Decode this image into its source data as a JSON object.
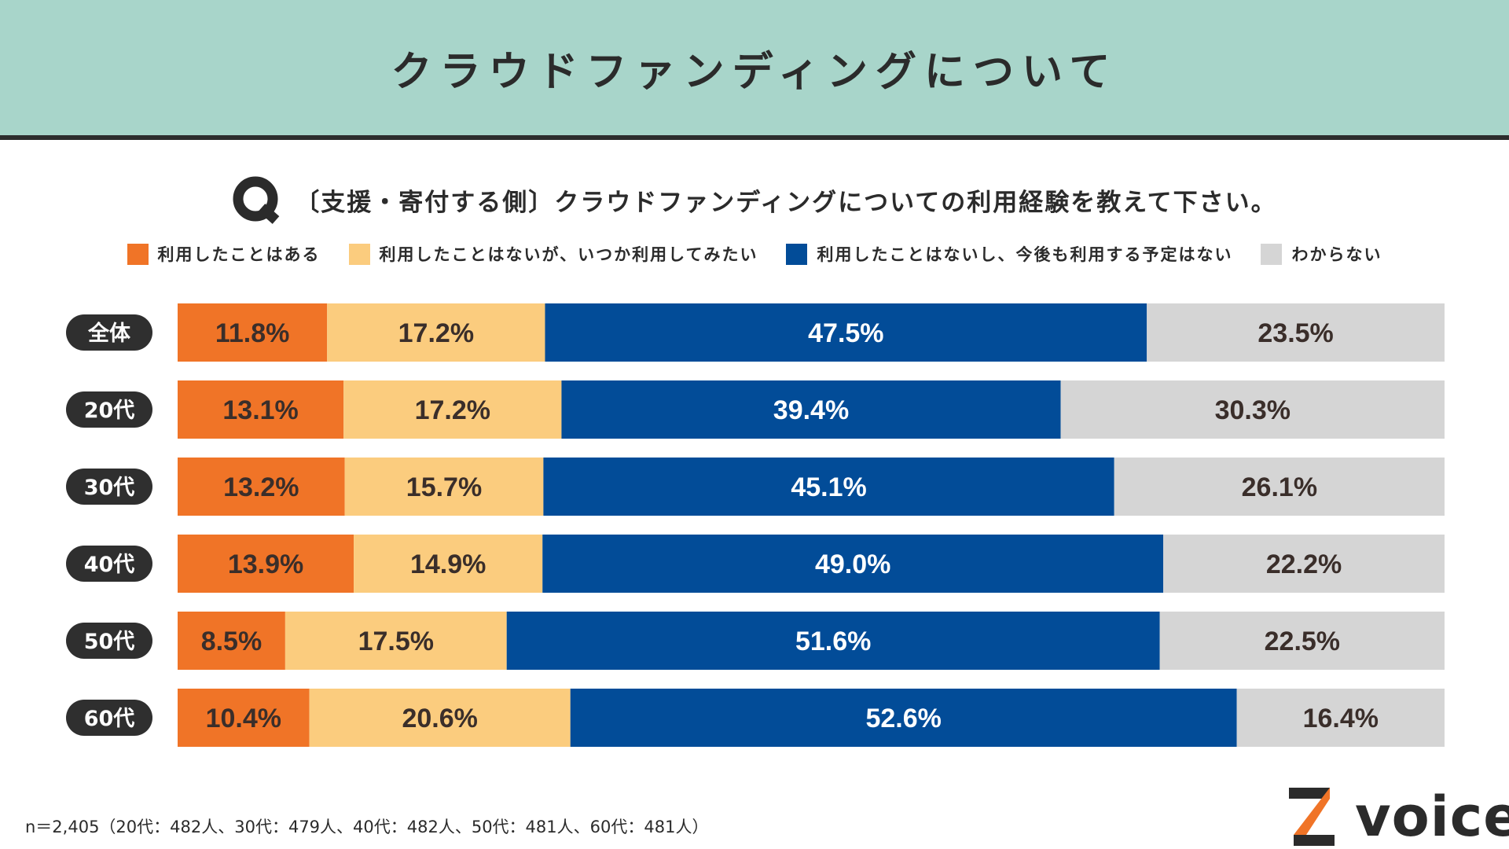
{
  "header": {
    "title": "クラウドファンディングについて"
  },
  "question": {
    "text": "〔支援・寄付する側〕クラウドファンディングについての利用経験を教えて下さい。"
  },
  "legend": [
    {
      "label": "利用したことはある",
      "color": "#f07427"
    },
    {
      "label": "利用したことはないが、いつか利用してみたい",
      "color": "#fbcc7e"
    },
    {
      "label": "利用したことはないし、今後も利用する予定はない",
      "color": "#024c98"
    },
    {
      "label": "わからない",
      "color": "#d5d5d5"
    }
  ],
  "chart_data": {
    "type": "bar",
    "orientation": "horizontal-stacked-100",
    "categories": [
      "全体",
      "20代",
      "30代",
      "40代",
      "50代",
      "60代"
    ],
    "series": [
      {
        "name": "利用したことはある",
        "values": [
          11.8,
          13.1,
          13.2,
          13.9,
          8.5,
          10.4
        ],
        "labels": [
          "11.8%",
          "13.1%",
          "13.2%",
          "13.9%",
          "8.5%",
          "10.4%"
        ],
        "color": "#f07427",
        "label_color": "#3a2e2a"
      },
      {
        "name": "利用したことはないが、いつか利用してみたい",
        "values": [
          17.2,
          17.2,
          15.7,
          14.9,
          17.5,
          20.6
        ],
        "labels": [
          "17.2%",
          "17.2%",
          "15.7%",
          "14.9%",
          "17.5%",
          "20.6%"
        ],
        "color": "#fbcc7e",
        "label_color": "#3a2e2a"
      },
      {
        "name": "利用したことはないし、今後も利用する予定はない",
        "values": [
          47.5,
          39.4,
          45.1,
          49.0,
          51.6,
          52.6
        ],
        "labels": [
          "47.5%",
          "39.4%",
          "45.1%",
          "49.0%",
          "51.6%",
          "52.6%"
        ],
        "color": "#024c98",
        "label_color": "#ffffff"
      },
      {
        "name": "わからない",
        "values": [
          23.5,
          30.3,
          26.1,
          22.2,
          22.5,
          16.4
        ],
        "labels": [
          "23.5%",
          "30.3%",
          "26.1%",
          "22.2%",
          "22.5%",
          "16.4%"
        ],
        "color": "#d5d5d5",
        "label_color": "#3a2e2a"
      }
    ],
    "xlim": [
      0,
      100
    ]
  },
  "footnote": "n＝2,405（20代：482人、30代：479人、40代：482人、50代：481人、60代：481人）",
  "logo": {
    "text": "voice",
    "mark": "Z"
  },
  "colors": {
    "header_bg": "#a8d5ca",
    "pill_bg": "#2f2f2f",
    "logo_orange": "#f07427"
  }
}
